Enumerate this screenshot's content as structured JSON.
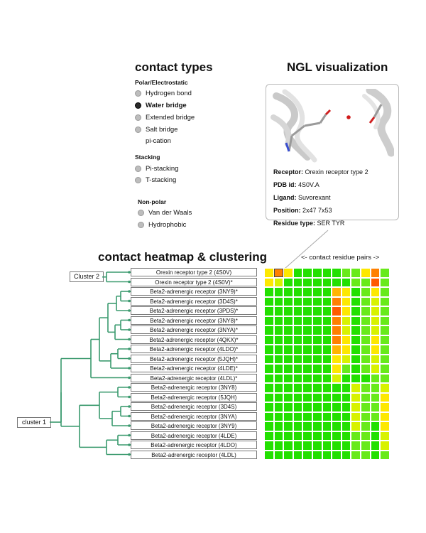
{
  "contact_types": {
    "title": "contact types",
    "groups": [
      {
        "label": "Polar/Electrostatic",
        "options": [
          {
            "label": "Hydrogen bond",
            "selected": false
          },
          {
            "label": "Water bridge",
            "selected": true
          },
          {
            "label": "Extended bridge",
            "selected": false
          },
          {
            "label": "Salt bridge",
            "selected": false
          },
          {
            "label": "pi-cation",
            "selected": false
          }
        ]
      },
      {
        "label": "Stacking",
        "options": [
          {
            "label": "Pi-stacking",
            "selected": false
          },
          {
            "label": "T-stacking",
            "selected": false
          }
        ]
      },
      {
        "label": "Non-polar",
        "options": [
          {
            "label": "Van der Waals",
            "selected": false
          },
          {
            "label": "Hydrophobic",
            "selected": false
          }
        ]
      }
    ]
  },
  "ngl": {
    "title": "NGL visualization",
    "receptor_key": "Receptor:",
    "receptor": "Orexin receptor type 2",
    "pdb_key": "PDB id:",
    "pdb": "4S0V.A",
    "ligand_key": "Ligand:",
    "ligand": "Suvorexant",
    "position_key": "Position:",
    "position": "2x47 7x53",
    "residue_key": "Residue type:",
    "residue": "SER TYR"
  },
  "heatmap": {
    "title": "contact heatmap & clustering",
    "x_caption": "<- contact residue pairs ->",
    "cluster2_label": "Cluster 2",
    "cluster1_label": "cluster 1",
    "colors": {
      "G": "#22e000",
      "g": "#68ea1a",
      "y": "#d8f200",
      "Y": "#fde800",
      "o": "#ffb400",
      "O": "#ff8000",
      "R": "#ff5a00"
    },
    "rows": [
      {
        "label": "Orexin receptor type 2 (4S0V)",
        "cells": "YOYGGGGGggYOg"
      },
      {
        "label": "Orexin receptor type 2 (4S0V)*",
        "cells": "YyGGGGGGGggRg"
      },
      {
        "label": "Beta2-adrenergic receptor (3NY9)*",
        "cells": "GGGGGGGoYGgYg"
      },
      {
        "label": "Beta2-adrenergic receptor (3D4S)*",
        "cells": "GGGGGGGOYGgyg"
      },
      {
        "label": "Beta2-adrenergic receptor (3PDS)*",
        "cells": "GGGGGGGRYGgyg"
      },
      {
        "label": "Beta2-adrenergic receptor (3NY8)*",
        "cells": "GGGGGGGOyGgyg"
      },
      {
        "label": "Beta2-adrenergic receptor (3NYA)*",
        "cells": "GGGGGGGOyGgyg"
      },
      {
        "label": "Beta2-adrenergic receptor (4QKX)*",
        "cells": "GGGGGGGOYGgYg"
      },
      {
        "label": "Beta2-adrenergic receptor (4LDO)*",
        "cells": "GGGGGGGoYGgYg"
      },
      {
        "label": "Beta2-adrenergic receptor (5JQH)*",
        "cells": "GGGGGGGYyGgyg"
      },
      {
        "label": "Beta2-adrenergic receptor (4LDE)*",
        "cells": "GGGGGGGYgGgyg"
      },
      {
        "label": "Beta2-adrenergic receptor (4LDL)*",
        "cells": "GGGGGGGyGGGgg"
      },
      {
        "label": "Beta2-adrenergic receptor (3NY8)",
        "cells": "GGGGGGGGGyggy"
      },
      {
        "label": "Beta2-adrenergic receptor (5JQH)",
        "cells": "GGGGGGGGGyggY"
      },
      {
        "label": "Beta2-adrenergic receptor (3D4S)",
        "cells": "GGGGGGGGGyggY"
      },
      {
        "label": "Beta2-adrenergic receptor (3NYA)",
        "cells": "GGGGGGGGGyggY"
      },
      {
        "label": "Beta2-adrenergic receptor (3NY9)",
        "cells": "GGGGGGGGGygGY"
      },
      {
        "label": "Beta2-adrenergic receptor (4LDE)",
        "cells": "GGGGGGGGGggGy"
      },
      {
        "label": "Beta2-adrenergic receptor (4LDO)",
        "cells": "GGGGGGGGGggGy"
      },
      {
        "label": "Beta2-adrenergic receptor (4LDL)",
        "cells": "GGGGGGGGGggGg"
      }
    ]
  }
}
